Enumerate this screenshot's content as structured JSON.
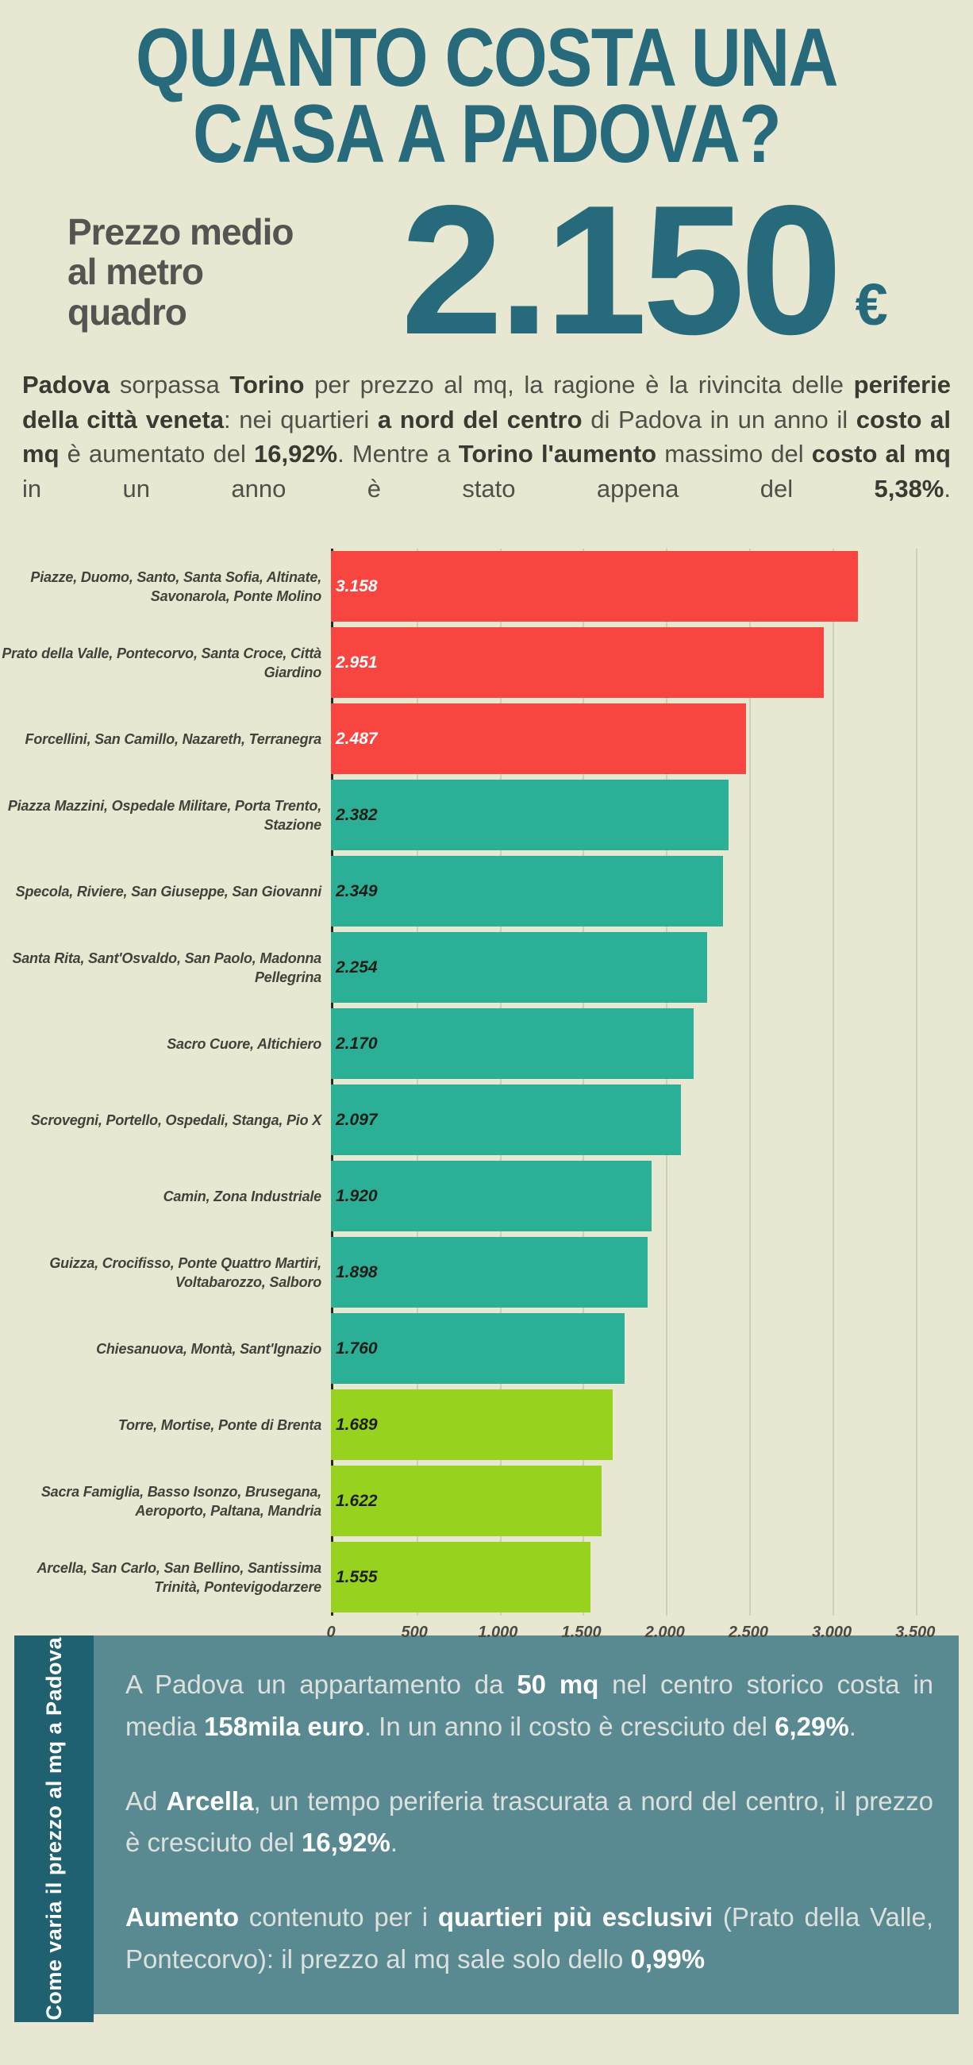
{
  "header": {
    "title_line1": "QUANTO COSTA UNA",
    "title_line2": "CASA A PADOVA?"
  },
  "price": {
    "label": "Prezzo medio\nal metro\nquadro",
    "value": "2.150",
    "currency": "€"
  },
  "intro_segments": [
    {
      "t": "Padova",
      "b": true
    },
    {
      "t": " sorpassa ",
      "b": false
    },
    {
      "t": "Torino",
      "b": true
    },
    {
      "t": " per prezzo al mq, la ragione è la rivincita delle ",
      "b": false
    },
    {
      "t": "periferie della città veneta",
      "b": true
    },
    {
      "t": ": nei quartieri ",
      "b": false
    },
    {
      "t": "a nord del centro",
      "b": true
    },
    {
      "t": " di Padova in un anno il ",
      "b": false
    },
    {
      "t": "costo al mq",
      "b": true
    },
    {
      "t": " è aumentato del ",
      "b": false
    },
    {
      "t": "16,92%",
      "b": true
    },
    {
      "t": ". Mentre a ",
      "b": false
    },
    {
      "t": "Torino",
      "b": true
    },
    {
      "t": " ",
      "b": false
    },
    {
      "t": "l'aumento",
      "b": true
    },
    {
      "t": " massimo del ",
      "b": false
    },
    {
      "t": "costo al mq",
      "b": true
    },
    {
      "t": " in un anno è stato appena del ",
      "b": false
    },
    {
      "t": "5,38%",
      "b": true
    },
    {
      "t": ".",
      "b": false
    }
  ],
  "chart_data": {
    "type": "bar",
    "orientation": "horizontal",
    "axis_max": 3760,
    "grid": true,
    "colors": {
      "high": "#F94540",
      "mid": "#2CAF97",
      "low": "#97D31E",
      "gridline": "#CFCFBC",
      "axis": "#2B2B24"
    },
    "bars": [
      {
        "label": "Piazze, Duomo, Santo, Santa Sofia, Altinate, Savonarola, Ponte Molino",
        "value": 3158,
        "display": "3.158",
        "color": "#F94540",
        "value_color": "#FFFFFF"
      },
      {
        "label": "Prato della Valle, Pontecorvo, Santa Croce, Città Giardino",
        "value": 2951,
        "display": "2.951",
        "color": "#F94540",
        "value_color": "#FFFFFF"
      },
      {
        "label": "Forcellini, San Camillo, Nazareth, Terranegra",
        "value": 2487,
        "display": "2.487",
        "color": "#F94540",
        "value_color": "#FFFFFF"
      },
      {
        "label": "Piazza Mazzini, Ospedale Militare, Porta Trento, Stazione",
        "value": 2382,
        "display": "2.382",
        "color": "#2CAF97",
        "value_color": "#1E1E19"
      },
      {
        "label": "Specola, Riviere, San Giuseppe, San Giovanni",
        "value": 2349,
        "display": "2.349",
        "color": "#2CAF97",
        "value_color": "#1E1E19"
      },
      {
        "label": "Santa Rita, Sant'Osvaldo, San Paolo, Madonna Pellegrina",
        "value": 2254,
        "display": "2.254",
        "color": "#2CAF97",
        "value_color": "#1E1E19"
      },
      {
        "label": "Sacro Cuore, Altichiero",
        "value": 2170,
        "display": "2.170",
        "color": "#2CAF97",
        "value_color": "#1E1E19"
      },
      {
        "label": "Scrovegni, Portello, Ospedali, Stanga, Pio X",
        "value": 2097,
        "display": "2.097",
        "color": "#2CAF97",
        "value_color": "#1E1E19"
      },
      {
        "label": "Camin, Zona Industriale",
        "value": 1920,
        "display": "1.920",
        "color": "#2CAF97",
        "value_color": "#1E1E19"
      },
      {
        "label": "Guizza, Crocifisso, Ponte Quattro Martiri, Voltabarozzo, Salboro",
        "value": 1898,
        "display": "1.898",
        "color": "#2CAF97",
        "value_color": "#1E1E19"
      },
      {
        "label": "Chiesanuova, Montà, Sant'Ignazio",
        "value": 1760,
        "display": "1.760",
        "color": "#2CAF97",
        "value_color": "#1E1E19"
      },
      {
        "label": "Torre, Mortise, Ponte di Brenta",
        "value": 1689,
        "display": "1.689",
        "color": "#97D31E",
        "value_color": "#1E1E19"
      },
      {
        "label": "Sacra Famiglia, Basso Isonzo, Brusegana, Aeroporto, Paltana, Mandria",
        "value": 1622,
        "display": "1.622",
        "color": "#97D31E",
        "value_color": "#1E1E19"
      },
      {
        "label": "Arcella, San Carlo, San Bellino, Santissima Trinità, Pontevigodarzere",
        "value": 1555,
        "display": "1.555",
        "color": "#97D31E",
        "value_color": "#1E1E19"
      }
    ],
    "ticks": [
      {
        "label": "0",
        "value": 0
      },
      {
        "label": "500",
        "value": 500
      },
      {
        "label": "1.000",
        "value": 1000
      },
      {
        "label": "1.500",
        "value": 1500
      },
      {
        "label": "2.000",
        "value": 2000
      },
      {
        "label": "2.500",
        "value": 2500
      },
      {
        "label": "3.000",
        "value": 3000
      },
      {
        "label": "3.500",
        "value": 3500
      }
    ]
  },
  "footer": {
    "sidebar_label": "Come varia il prezzo al mq a Padova",
    "paragraphs": [
      [
        {
          "t": "A Padova un appartamento da ",
          "b": false
        },
        {
          "t": "50 mq",
          "b": true
        },
        {
          "t": " nel centro storico costa in media ",
          "b": false
        },
        {
          "t": "158mila euro",
          "b": true
        },
        {
          "t": ". In un anno il costo è cresciuto del ",
          "b": false
        },
        {
          "t": "6,29%",
          "b": true
        },
        {
          "t": ".",
          "b": false
        }
      ],
      [
        {
          "t": "Ad ",
          "b": false
        },
        {
          "t": "Arcella",
          "b": true
        },
        {
          "t": ", un tempo periferia trascurata a nord del centro, il prezzo è cresciuto del ",
          "b": false
        },
        {
          "t": "16,92%",
          "b": true
        },
        {
          "t": ".",
          "b": false
        }
      ],
      [
        {
          "t": "Aumento",
          "b": true
        },
        {
          "t": " contenuto per i ",
          "b": false
        },
        {
          "t": "quartieri più esclusivi",
          "b": true
        },
        {
          "t": " (Prato della Valle, Pontecorvo): il prezzo al mq sale solo dello ",
          "b": false
        },
        {
          "t": "0,99%",
          "b": true
        }
      ]
    ]
  }
}
